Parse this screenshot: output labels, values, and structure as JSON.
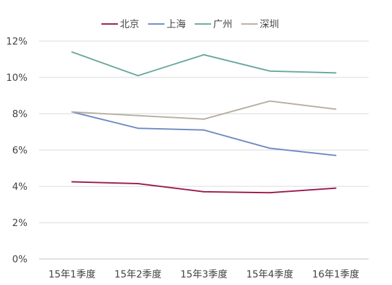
{
  "chart_data": {
    "type": "line",
    "title": "",
    "xlabel": "",
    "ylabel": "",
    "categories": [
      "15年1季度",
      "15年2季度",
      "15年3季度",
      "15年4季度",
      "16年1季度"
    ],
    "ylim": [
      0,
      12
    ],
    "yticks": [
      "0%",
      "2%",
      "4%",
      "6%",
      "8%",
      "10%",
      "12%"
    ],
    "grid": true,
    "legend_position": "top",
    "series": [
      {
        "name": "北京",
        "color": "#9b1b4f",
        "values": [
          4.25,
          4.15,
          3.7,
          3.65,
          3.9
        ]
      },
      {
        "name": "上海",
        "color": "#6f8bc2",
        "values": [
          8.1,
          7.2,
          7.1,
          6.1,
          5.7
        ]
      },
      {
        "name": "广州",
        "color": "#6aa99d",
        "values": [
          11.4,
          10.1,
          11.25,
          10.35,
          10.25
        ]
      },
      {
        "name": "深圳",
        "color": "#b8b09e",
        "values": [
          8.1,
          7.9,
          7.7,
          8.7,
          8.25
        ]
      }
    ]
  }
}
